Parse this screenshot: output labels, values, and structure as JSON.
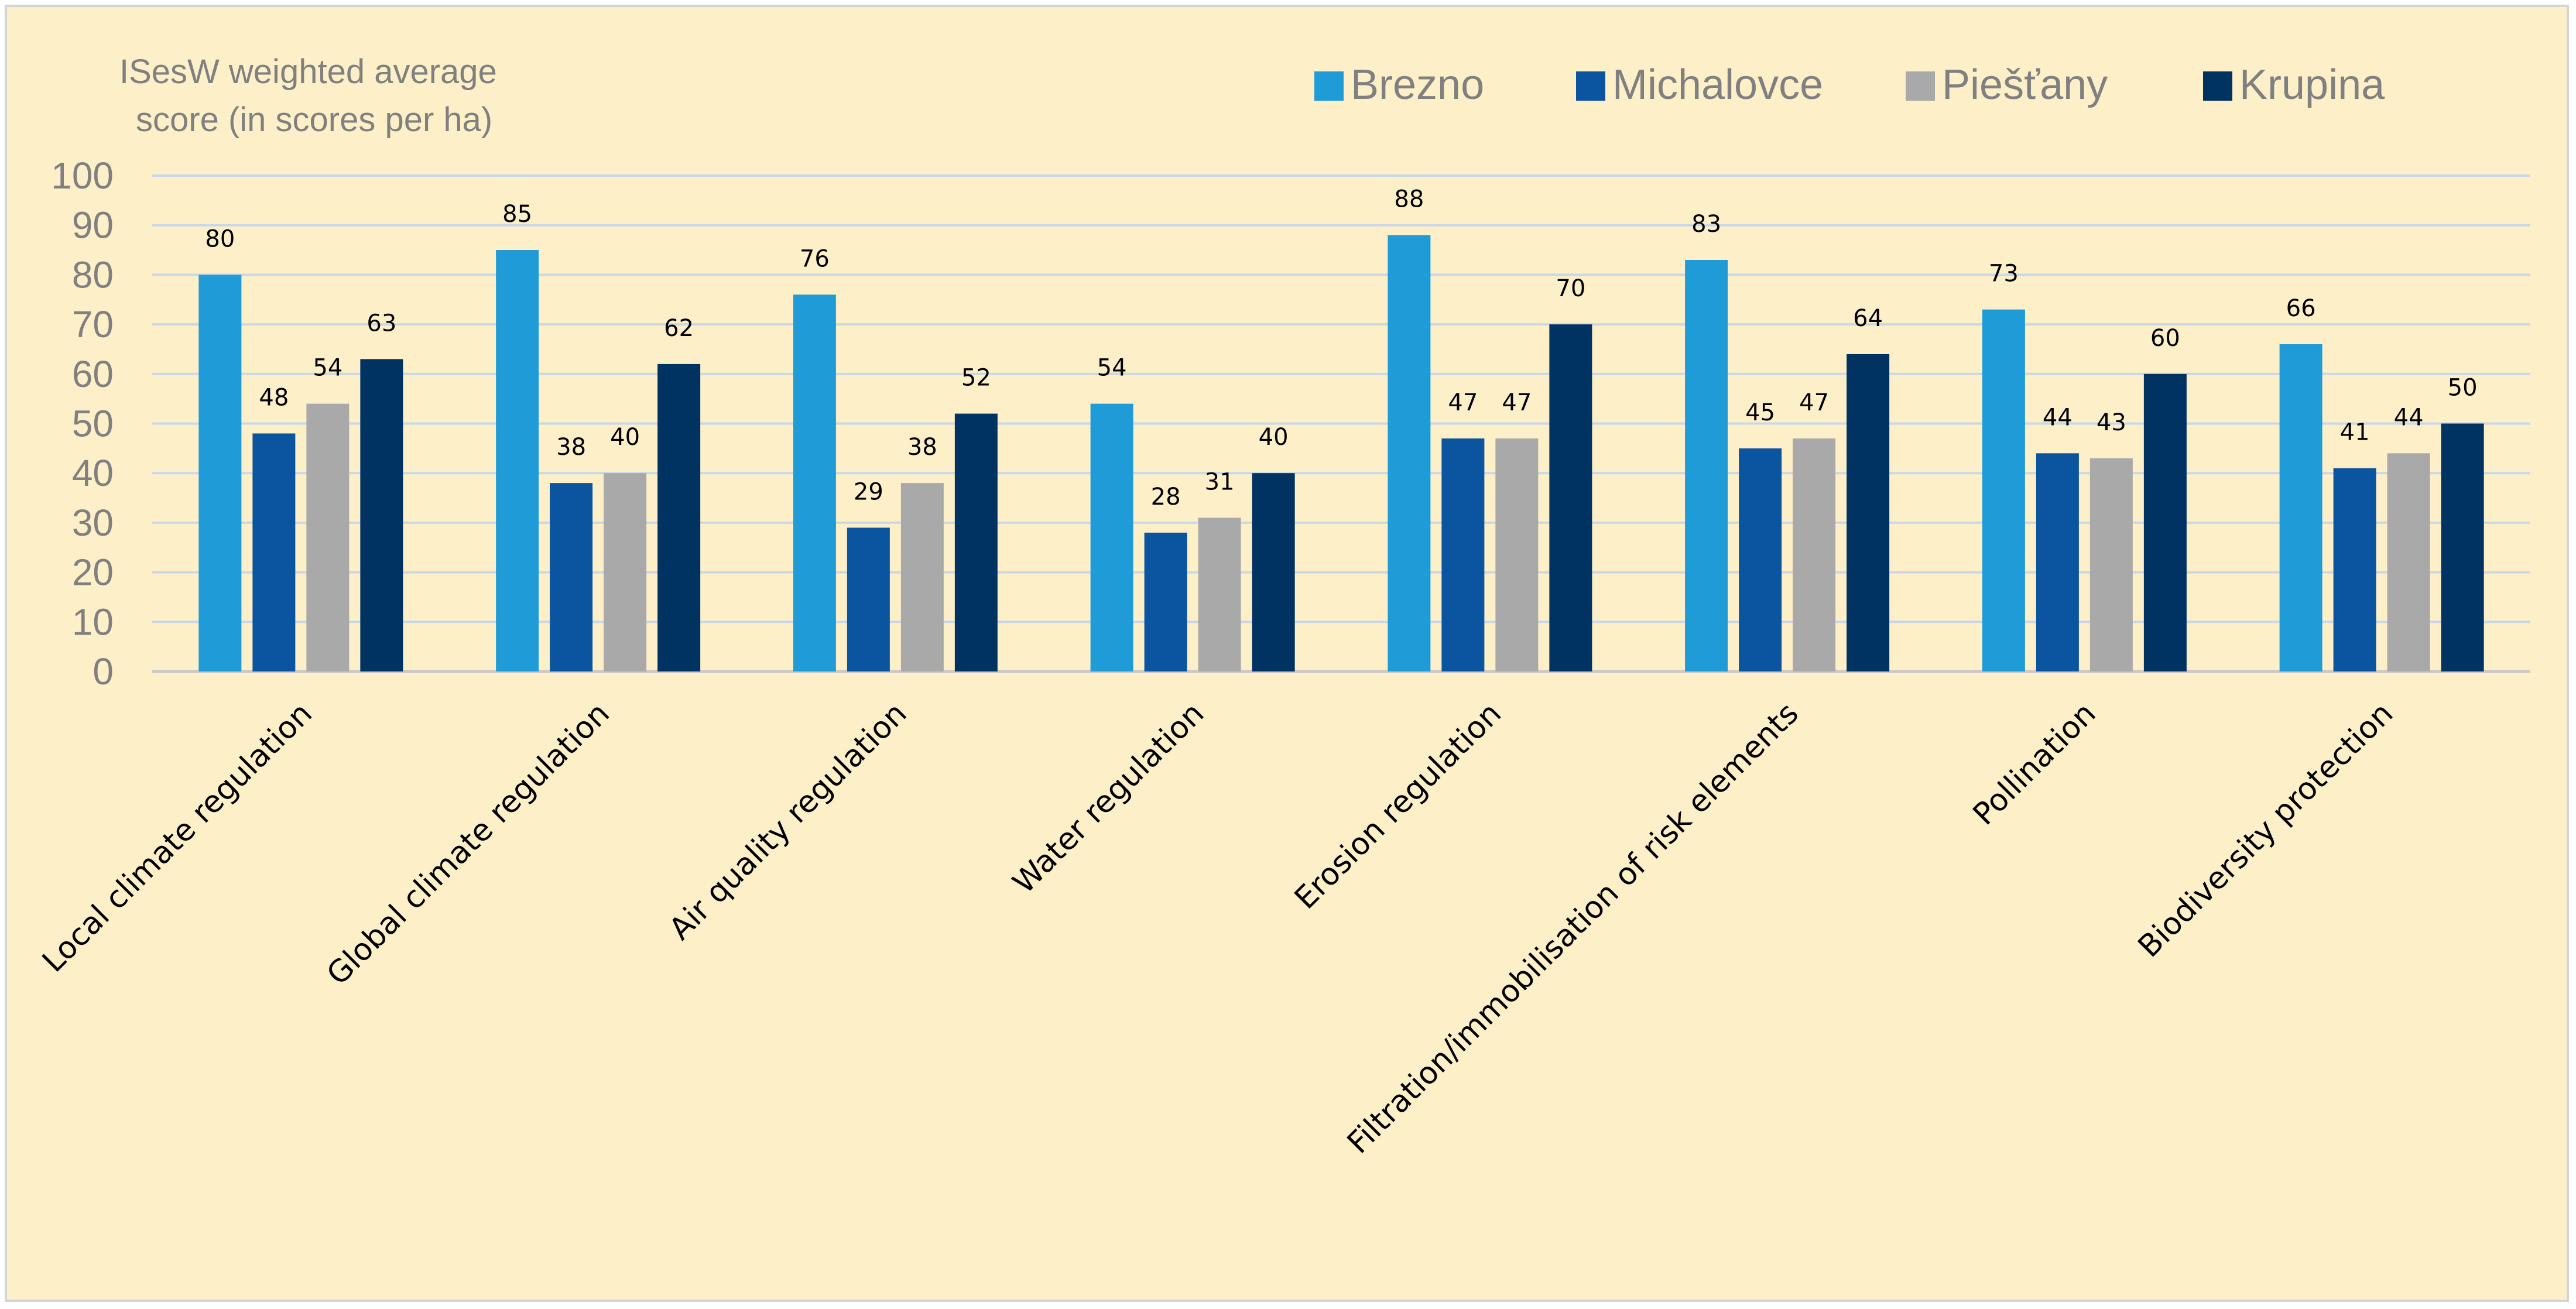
{
  "chart_data": {
    "type": "bar",
    "ylabel": [
      "ISesW weighted average",
      "score (in scores per ha)"
    ],
    "xlabel": "",
    "ylim": [
      0,
      100
    ],
    "yticks": [
      0,
      10,
      20,
      30,
      40,
      50,
      60,
      70,
      80,
      90,
      100
    ],
    "grid": true,
    "legend_position": "top-right",
    "categories": [
      "Local climate regulation",
      "Global climate regulation",
      "Air quality regulation",
      "Water regulation",
      "Erosion regulation",
      "Filtration/immobilisation of risk elements",
      "Pollination",
      "Biodiversity protection"
    ],
    "series": [
      {
        "name": "Brezno",
        "color": "#1f9bd7",
        "values": [
          80,
          85,
          76,
          54,
          88,
          83,
          73,
          66
        ]
      },
      {
        "name": "Michalovce",
        "color": "#0b549f",
        "values": [
          48,
          38,
          29,
          28,
          47,
          45,
          44,
          41
        ]
      },
      {
        "name": "Piešťany",
        "color": "#a9a9a9",
        "values": [
          54,
          40,
          38,
          31,
          47,
          47,
          43,
          44
        ]
      },
      {
        "name": "Krupina",
        "color": "#003262",
        "values": [
          63,
          62,
          52,
          40,
          70,
          64,
          60,
          50
        ]
      }
    ]
  },
  "colors": {
    "background": "#fdf0c8",
    "gridline": "#c9d8e8",
    "axis_text": "#808080"
  }
}
